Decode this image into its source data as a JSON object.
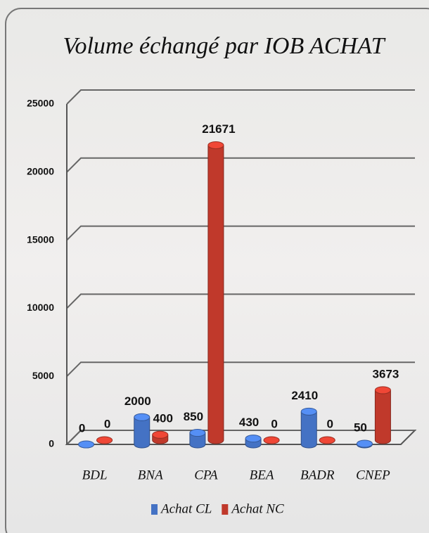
{
  "chart_data": {
    "type": "bar3d",
    "title": "Volume échangé par IOB ACHAT",
    "categories": [
      "BDL",
      "BNA",
      "CPA",
      "BEA",
      "BADR",
      "CNEP"
    ],
    "series": [
      {
        "name": "Achat CL",
        "color": "#4472c4",
        "values": [
          0,
          2000,
          850,
          430,
          2410,
          50
        ]
      },
      {
        "name": "Achat NC",
        "color": "#c0392b",
        "values": [
          0,
          400,
          21671,
          0,
          0,
          3673
        ]
      }
    ],
    "ylim": [
      0,
      25000
    ],
    "yticks": [
      0,
      5000,
      10000,
      15000,
      20000,
      25000
    ],
    "grid": true,
    "legend": "bottom"
  }
}
